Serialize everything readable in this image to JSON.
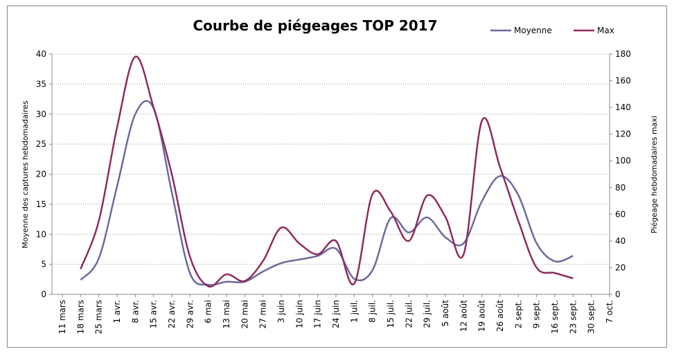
{
  "chart_data": {
    "type": "line",
    "title": "Courbe de piégeages TOP 2017",
    "ylabel": "Moyenne des captures hebdomadaires",
    "y2label": "Piégeage hebdomadaires maxi",
    "categories": [
      "11 mars",
      "18 mars",
      "25 mars",
      "1 avr.",
      "8 avr.",
      "15 avr.",
      "22 avr.",
      "29 avr.",
      "6 mai",
      "13 mai",
      "20 mai",
      "27 mai",
      "3 juin",
      "10 juin",
      "17 juin",
      "24 juin",
      "1 juil.",
      "8 juil.",
      "15 juil.",
      "22 juil.",
      "29 juil.",
      "5 août",
      "12 août",
      "19 août",
      "26 août",
      "2 sept.",
      "9 sept.",
      "16 sept.",
      "23 sept.",
      "30 sept.",
      "7 oct."
    ],
    "series": [
      {
        "name": "Moyenne",
        "color": "#6a6a9c",
        "values": [
          null,
          2.4,
          6,
          18,
          30,
          31,
          17,
          3.5,
          1.6,
          2.1,
          2.1,
          3.8,
          5.2,
          5.8,
          6.4,
          7.6,
          2.6,
          4,
          12.7,
          10.3,
          12.8,
          9.5,
          8.5,
          15.5,
          19.7,
          16.5,
          8.5,
          5.5,
          6.4,
          null,
          null
        ]
      },
      {
        "name": "Max",
        "color": "#8e2a5e",
        "axis": "y2",
        "values": [
          null,
          19,
          55,
          125,
          178,
          140,
          90,
          28,
          6,
          15,
          10,
          25,
          50,
          38,
          30,
          40,
          8,
          75,
          62,
          40,
          74,
          58,
          30,
          130,
          95,
          55,
          20,
          16,
          12,
          null,
          null
        ]
      }
    ],
    "ylim": [
      0,
      40
    ],
    "yticks": [
      0,
      5,
      10,
      15,
      20,
      25,
      30,
      35,
      40
    ],
    "y2lim": [
      0,
      180
    ],
    "y2ticks": [
      0,
      20,
      40,
      60,
      80,
      100,
      120,
      140,
      160,
      180
    ],
    "grid": true,
    "legend": "top-right"
  }
}
